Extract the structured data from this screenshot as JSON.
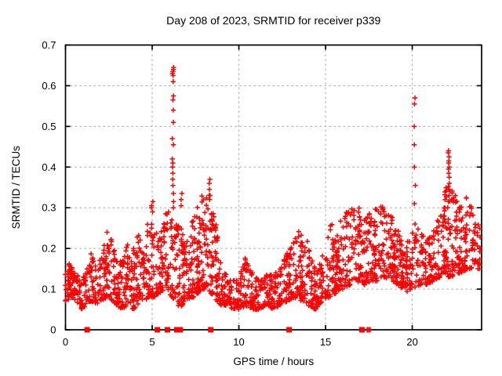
{
  "chart_data": {
    "type": "scatter",
    "title": "Day 208 of 2023, SRMTID for receiver p339",
    "xlabel": "GPS time / hours",
    "ylabel": "SRMTID / TECUs",
    "xlim": [
      0,
      24
    ],
    "ylim": [
      0,
      0.7
    ],
    "xticks": [
      0,
      5,
      10,
      15,
      20
    ],
    "yticks": [
      0,
      0.1,
      0.2,
      0.3,
      0.4,
      0.5,
      0.6,
      0.7
    ],
    "grid": true,
    "legend": "none",
    "marker": "plus",
    "marker_color": "#ff0000",
    "event_marker_color": "#ff0000",
    "grid_color": "#a8a8a8",
    "axis_color": "#000000",
    "background": "#ffffff",
    "seed": 2023208,
    "envelope": [
      [
        0.0,
        0.07,
        0.17
      ],
      [
        0.3,
        0.08,
        0.16
      ],
      [
        0.6,
        0.07,
        0.14
      ],
      [
        0.9,
        0.05,
        0.12
      ],
      [
        1.2,
        0.06,
        0.15
      ],
      [
        1.5,
        0.07,
        0.2
      ],
      [
        1.8,
        0.06,
        0.16
      ],
      [
        2.1,
        0.07,
        0.18
      ],
      [
        2.4,
        0.08,
        0.25
      ],
      [
        2.7,
        0.07,
        0.22
      ],
      [
        3.0,
        0.06,
        0.16
      ],
      [
        3.3,
        0.05,
        0.18
      ],
      [
        3.6,
        0.06,
        0.22
      ],
      [
        3.9,
        0.05,
        0.2
      ],
      [
        4.2,
        0.06,
        0.24
      ],
      [
        4.5,
        0.07,
        0.2
      ],
      [
        4.8,
        0.08,
        0.28
      ],
      [
        5.1,
        0.08,
        0.26
      ],
      [
        5.4,
        0.09,
        0.22
      ],
      [
        5.7,
        0.1,
        0.28
      ],
      [
        6.0,
        0.09,
        0.3
      ],
      [
        6.3,
        0.07,
        0.28
      ],
      [
        6.6,
        0.05,
        0.26
      ],
      [
        6.9,
        0.07,
        0.22
      ],
      [
        7.2,
        0.08,
        0.26
      ],
      [
        7.5,
        0.08,
        0.3
      ],
      [
        7.8,
        0.1,
        0.33
      ],
      [
        8.1,
        0.1,
        0.34
      ],
      [
        8.4,
        0.09,
        0.33
      ],
      [
        8.7,
        0.07,
        0.26
      ],
      [
        9.0,
        0.06,
        0.16
      ],
      [
        9.3,
        0.06,
        0.13
      ],
      [
        9.6,
        0.05,
        0.12
      ],
      [
        10.0,
        0.05,
        0.13
      ],
      [
        10.4,
        0.06,
        0.18
      ],
      [
        10.8,
        0.05,
        0.14
      ],
      [
        11.2,
        0.05,
        0.12
      ],
      [
        11.6,
        0.06,
        0.14
      ],
      [
        12.0,
        0.05,
        0.14
      ],
      [
        12.4,
        0.06,
        0.16
      ],
      [
        12.8,
        0.07,
        0.2
      ],
      [
        13.2,
        0.08,
        0.24
      ],
      [
        13.6,
        0.07,
        0.25
      ],
      [
        14.0,
        0.06,
        0.22
      ],
      [
        14.4,
        0.05,
        0.16
      ],
      [
        14.8,
        0.07,
        0.17
      ],
      [
        15.2,
        0.08,
        0.28
      ],
      [
        15.6,
        0.09,
        0.24
      ],
      [
        16.0,
        0.1,
        0.28
      ],
      [
        16.4,
        0.11,
        0.3
      ],
      [
        16.8,
        0.12,
        0.32
      ],
      [
        17.2,
        0.11,
        0.27
      ],
      [
        17.6,
        0.12,
        0.29
      ],
      [
        18.0,
        0.12,
        0.3
      ],
      [
        18.4,
        0.13,
        0.31
      ],
      [
        18.8,
        0.12,
        0.28
      ],
      [
        19.2,
        0.11,
        0.25
      ],
      [
        19.6,
        0.09,
        0.21
      ],
      [
        20.0,
        0.1,
        0.24
      ],
      [
        20.4,
        0.11,
        0.25
      ],
      [
        20.8,
        0.11,
        0.22
      ],
      [
        21.2,
        0.12,
        0.24
      ],
      [
        21.6,
        0.13,
        0.28
      ],
      [
        22.0,
        0.13,
        0.36
      ],
      [
        22.4,
        0.13,
        0.34
      ],
      [
        22.8,
        0.14,
        0.31
      ],
      [
        23.2,
        0.15,
        0.33
      ],
      [
        23.6,
        0.15,
        0.28
      ],
      [
        24.0,
        0.15,
        0.24
      ]
    ],
    "spikes": [
      {
        "h": 6.2,
        "values": [
          0.645,
          0.64,
          0.635,
          0.63,
          0.625,
          0.61,
          0.575,
          0.565,
          0.54,
          0.51,
          0.47,
          0.455,
          0.42,
          0.41,
          0.4,
          0.385,
          0.37,
          0.355,
          0.335,
          0.315,
          0.3
        ]
      },
      {
        "h": 6.68,
        "values": [
          0.335,
          0.32,
          0.305
        ]
      },
      {
        "h": 5.0,
        "values": [
          0.315,
          0.305,
          0.3,
          0.29
        ]
      },
      {
        "h": 8.3,
        "values": [
          0.37,
          0.36,
          0.345,
          0.33,
          0.32
        ]
      },
      {
        "h": 20.15,
        "values": [
          0.57,
          0.555,
          0.5,
          0.455,
          0.4,
          0.355,
          0.31,
          0.26
        ]
      },
      {
        "h": 22.1,
        "values": [
          0.44,
          0.435,
          0.425,
          0.415,
          0.41,
          0.4,
          0.395,
          0.385,
          0.375,
          0.36,
          0.345,
          0.33,
          0.315
        ]
      }
    ],
    "event_markers_hours": [
      1.25,
      5.3,
      5.88,
      6.42,
      6.62,
      8.38,
      12.9,
      17.1
    ],
    "event_tick_hours": [
      17.42,
      17.55
    ]
  }
}
